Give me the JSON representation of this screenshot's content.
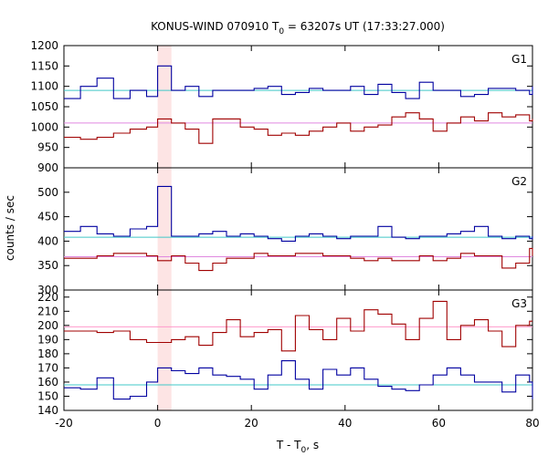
{
  "chart_data": {
    "type": "line",
    "title_main": "KONUS-WIND 070910 T",
    "title_sub": "0",
    "title_rest": " = 63207s UT (17:33:27.000)",
    "xlabel_main": "T - T",
    "xlabel_sub": "0",
    "xlabel_rest": ", s",
    "ylabel": "counts / sec",
    "xlim": [
      -20,
      80
    ],
    "x_ticks": [
      -20,
      0,
      20,
      40,
      60,
      80
    ],
    "x_tick_labels": [
      "-20",
      "0",
      "20",
      "40",
      "60",
      "80"
    ],
    "highlight_interval": [
      0,
      2.94
    ],
    "highlight_color": "#fde4e4",
    "grid": false,
    "bin_edges": [
      -20,
      -16.47,
      -12.94,
      -9.41,
      -5.88,
      -2.35,
      0,
      2.94,
      5.88,
      8.82,
      11.76,
      14.7,
      17.64,
      20.58,
      23.52,
      26.46,
      29.4,
      32.34,
      35.28,
      38.22,
      41.16,
      44.1,
      47.04,
      49.98,
      52.92,
      55.86,
      58.8,
      61.74,
      64.68,
      67.62,
      70.56,
      73.5,
      76.44,
      79.38,
      80
    ],
    "panels": [
      {
        "label": "G1",
        "ylim": [
          900,
          1200
        ],
        "y_ticks": [
          900,
          950,
          1000,
          1050,
          1100,
          1150,
          1200
        ],
        "series": [
          {
            "color": "#0000a0",
            "values": [
              1070,
              1100,
              1120,
              1070,
              1090,
              1075,
              1150,
              1090,
              1100,
              1075,
              1090,
              1090,
              1090,
              1095,
              1100,
              1080,
              1085,
              1095,
              1090,
              1090,
              1100,
              1080,
              1105,
              1085,
              1070,
              1110,
              1090,
              1090,
              1075,
              1080,
              1095,
              1095,
              1090,
              1080,
              1100
            ],
            "background": 1090,
            "background_color": "#40c8c8"
          },
          {
            "color": "#a00000",
            "values": [
              975,
              970,
              975,
              985,
              995,
              1000,
              1020,
              1010,
              995,
              960,
              1020,
              1020,
              1000,
              995,
              980,
              985,
              980,
              990,
              1000,
              1010,
              990,
              1000,
              1005,
              1025,
              1035,
              1020,
              990,
              1010,
              1025,
              1015,
              1035,
              1025,
              1030,
              1015,
              1020
            ],
            "background": 1010,
            "background_color": "#e088e0"
          }
        ]
      },
      {
        "label": "G2",
        "ylim": [
          300,
          550
        ],
        "y_ticks": [
          300,
          350,
          400,
          450,
          500
        ],
        "series": [
          {
            "color": "#0000a0",
            "values": [
              420,
              430,
              415,
              410,
              425,
              430,
              512,
              410,
              410,
              415,
              420,
              410,
              415,
              410,
              405,
              400,
              410,
              415,
              410,
              405,
              410,
              410,
              430,
              408,
              405,
              410,
              410,
              415,
              420,
              430,
              410,
              405,
              410,
              405,
              410
            ],
            "background": 408,
            "background_color": "#40c8c8"
          },
          {
            "color": "#a00000",
            "values": [
              365,
              365,
              370,
              375,
              375,
              370,
              360,
              370,
              355,
              340,
              355,
              365,
              365,
              375,
              370,
              370,
              375,
              375,
              370,
              370,
              365,
              360,
              365,
              360,
              360,
              370,
              360,
              365,
              375,
              370,
              370,
              345,
              355,
              385,
              370
            ],
            "background": 368,
            "background_color": "#e088e0"
          }
        ]
      },
      {
        "label": "G3",
        "ylim": [
          140,
          225
        ],
        "y_ticks": [
          140,
          150,
          160,
          170,
          180,
          190,
          200,
          210,
          220
        ],
        "series": [
          {
            "color": "#0000a0",
            "values": [
              156,
              155,
              163,
              148,
              150,
              160,
              170,
              168,
              166,
              170,
              165,
              164,
              162,
              155,
              165,
              175,
              162,
              155,
              169,
              165,
              170,
              162,
              157,
              155,
              154,
              158,
              165,
              170,
              165,
              160,
              160,
              153,
              165,
              160,
              148
            ],
            "background": 158,
            "background_color": "#40c8c8"
          },
          {
            "color": "#a00000",
            "values": [
              196,
              196,
              195,
              196,
              190,
              188,
              188,
              190,
              192,
              186,
              195,
              204,
              192,
              195,
              197,
              182,
              207,
              197,
              190,
              205,
              196,
              211,
              208,
              201,
              190,
              205,
              217,
              190,
              200,
              204,
              196,
              185,
              200,
              203,
              203
            ],
            "background": 199,
            "background_color": "#ff99cc"
          }
        ]
      }
    ]
  }
}
